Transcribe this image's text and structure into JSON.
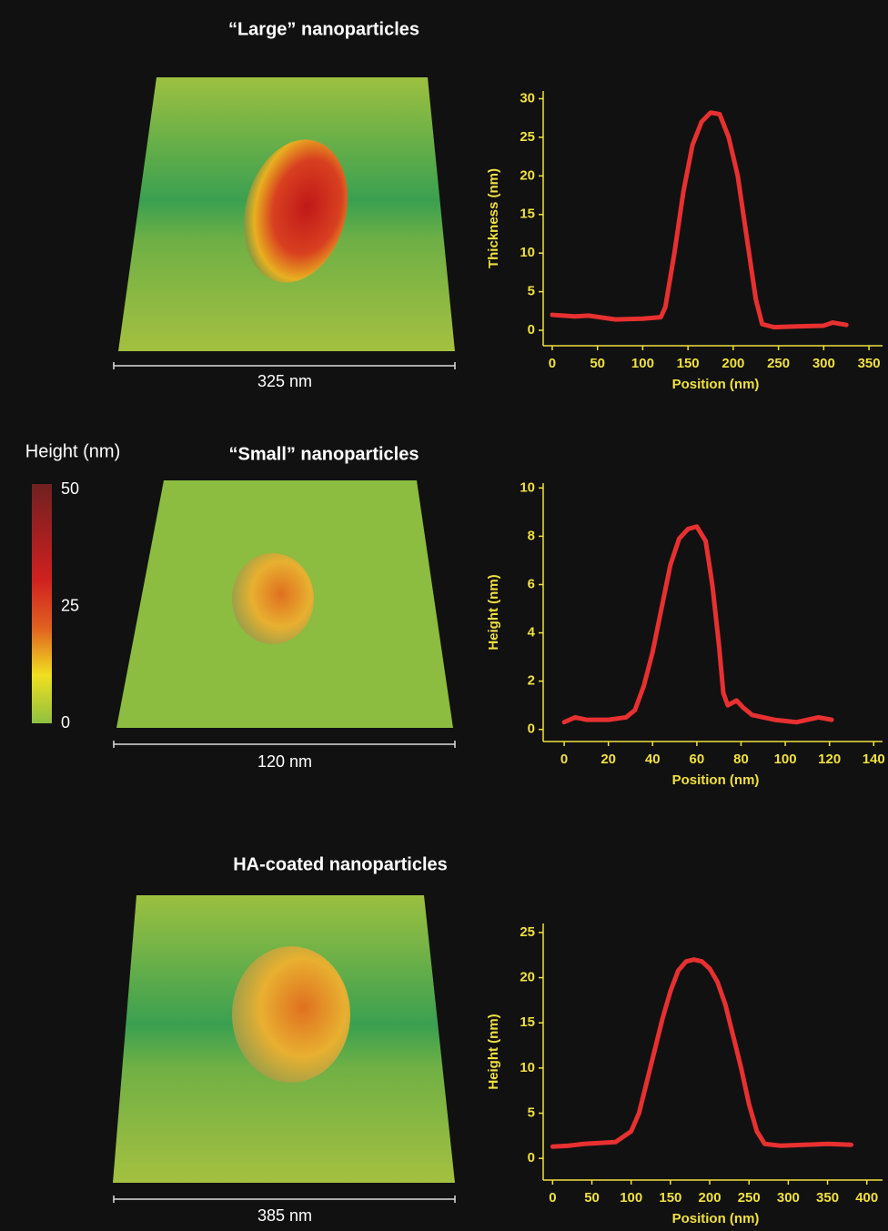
{
  "chart_data": [
    {
      "type": "line",
      "x_label": "Position (nm)",
      "y_label": "Thickness (nm)",
      "xlim": [
        -10,
        365
      ],
      "ylim": [
        -2,
        31
      ],
      "xticks": [
        0,
        50,
        100,
        150,
        200,
        250,
        300,
        350
      ],
      "yticks": [
        0,
        5,
        10,
        15,
        20,
        25,
        30
      ],
      "series": [
        {
          "color": "#e83030",
          "x": [
            0,
            25,
            40,
            70,
            100,
            120,
            125,
            135,
            145,
            155,
            165,
            175,
            185,
            195,
            205,
            215,
            225,
            232,
            245,
            270,
            300,
            310,
            325
          ],
          "values": [
            2,
            1.8,
            1.9,
            1.4,
            1.5,
            1.7,
            3,
            10,
            18,
            24,
            27,
            28.2,
            28,
            25,
            20,
            12,
            4,
            0.8,
            0.4,
            0.5,
            0.6,
            1.0,
            0.7
          ]
        }
      ]
    },
    {
      "type": "line",
      "x_label": "Position (nm)",
      "y_label": "Height (nm)",
      "xlim": [
        -9.5,
        144
      ],
      "ylim": [
        -0.5,
        10.2
      ],
      "xticks": [
        0,
        20,
        40,
        60,
        80,
        100,
        120,
        140
      ],
      "yticks": [
        0,
        2,
        4,
        6,
        8,
        10
      ],
      "series": [
        {
          "color": "#e83030",
          "x": [
            0,
            5,
            10,
            20,
            28,
            32,
            36,
            40,
            44,
            48,
            52,
            56,
            60,
            64,
            67,
            70,
            72,
            74,
            78,
            81,
            85,
            95,
            105,
            115,
            121
          ],
          "values": [
            0.3,
            0.5,
            0.4,
            0.4,
            0.5,
            0.8,
            1.8,
            3.2,
            5,
            6.8,
            7.9,
            8.3,
            8.4,
            7.8,
            6,
            3.5,
            1.5,
            1.0,
            1.2,
            0.9,
            0.6,
            0.4,
            0.3,
            0.5,
            0.4
          ]
        }
      ]
    },
    {
      "type": "line",
      "x_label": "Position (nm)",
      "y_label": "Height (nm)",
      "xlim": [
        -12,
        420
      ],
      "ylim": [
        -2.4,
        26
      ],
      "xticks": [
        0,
        50,
        100,
        150,
        200,
        250,
        300,
        350,
        400
      ],
      "yticks": [
        0,
        5,
        10,
        15,
        20,
        25
      ],
      "series": [
        {
          "color": "#e83030",
          "x": [
            0,
            20,
            40,
            60,
            80,
            100,
            110,
            120,
            130,
            140,
            150,
            160,
            170,
            180,
            190,
            200,
            210,
            220,
            230,
            240,
            250,
            260,
            270,
            290,
            320,
            350,
            380
          ],
          "values": [
            1.3,
            1.4,
            1.6,
            1.7,
            1.8,
            3,
            5,
            8.5,
            12,
            15.5,
            18.5,
            20.8,
            21.8,
            22,
            21.8,
            21,
            19.5,
            17,
            13.5,
            10,
            6,
            3,
            1.6,
            1.4,
            1.5,
            1.6,
            1.5
          ]
        }
      ]
    }
  ],
  "panels": [
    {
      "title": "“Large” nanoparticles",
      "scale_bar": "325 nm"
    },
    {
      "title": "“Small” nanoparticles",
      "scale_bar": "120 nm"
    },
    {
      "title": "HA-coated nanoparticles",
      "scale_bar": "385 nm"
    }
  ],
  "colorbar": {
    "label": "Height (nm)",
    "ticks": [
      0,
      25,
      50
    ]
  }
}
